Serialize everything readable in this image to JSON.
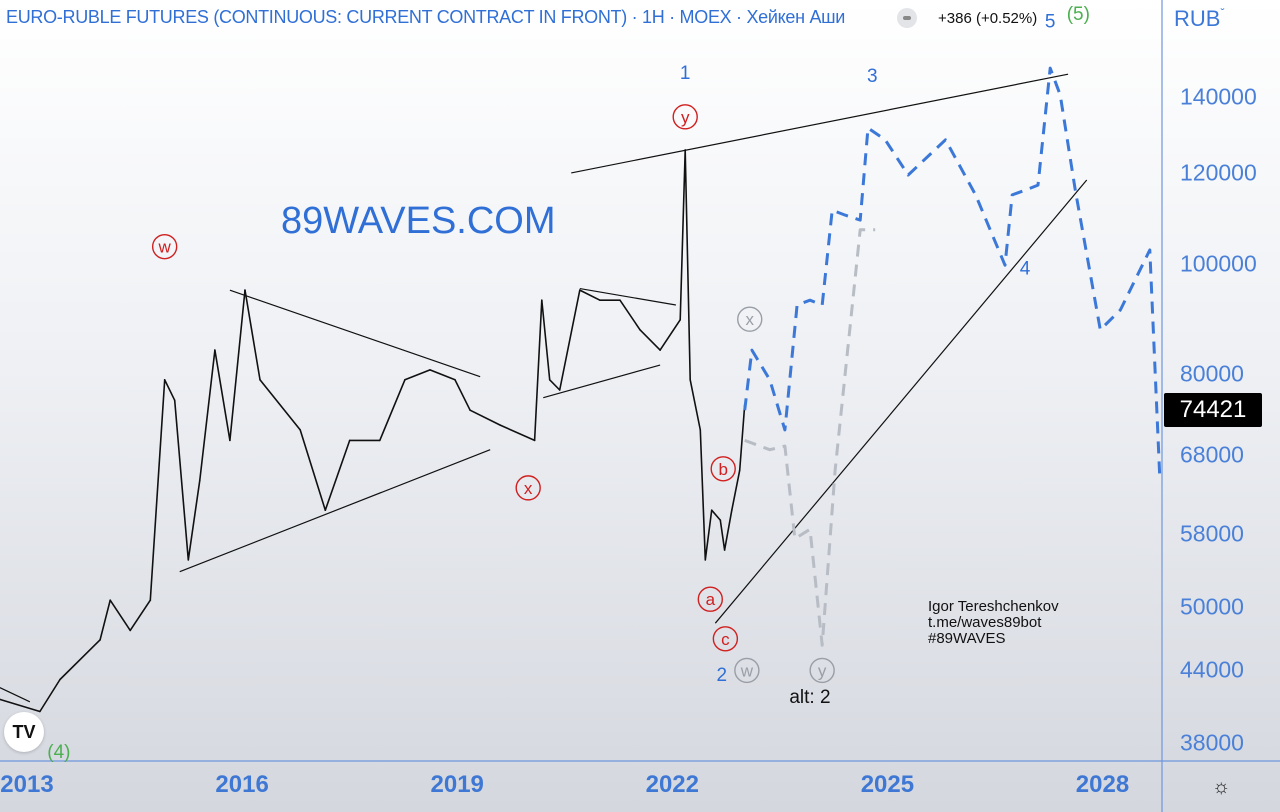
{
  "header": {
    "title": "EURO-RUBLE FUTURES (CONTINUOUS: CURRENT CONTRACT IN FRONT) · 1H · MOEX · Хейкен Аши",
    "change": "+386 (+0.52%)",
    "currency": "RUB"
  },
  "watermark": "89WAVES.COM",
  "author": {
    "name": "Igor Tereshchenkov",
    "link": "t.me/waves89bot",
    "tag": "#89WAVES"
  },
  "logo": "TV",
  "icons": {
    "settings": "sun-gear-icon"
  },
  "colors": {
    "price": "#111111",
    "projection": "#3b78d8",
    "alt_projection": "#b8bcc4",
    "red_label": "#d02020",
    "blue_label": "#2f6fd6",
    "green_label": "#4caf50",
    "axis": "#4a80d8"
  },
  "chart_data": {
    "type": "line",
    "title": "EURO-RUBLE FUTURES (CONTINUOUS: CURRENT CONTRACT IN FRONT)",
    "yscale": "log",
    "ylim": [
      36500,
      150000
    ],
    "xlim": [
      2012.62,
      2029.0
    ],
    "yticks": [
      "140000",
      "120000",
      "100000",
      "80000",
      "68000",
      "58000",
      "50000",
      "44000",
      "38000"
    ],
    "ytick_values": [
      140000,
      120000,
      100000,
      80000,
      68000,
      58000,
      50000,
      44000,
      38000
    ],
    "xticks": [
      "2013",
      "2016",
      "2019",
      "2022",
      "2025",
      "2028"
    ],
    "xtick_values": [
      2013,
      2016,
      2019,
      2022,
      2025,
      2028
    ],
    "last_price": "74421",
    "series": [
      {
        "name": "price",
        "style": "solid",
        "x": [
          2012.62,
          2013.18,
          2013.46,
          2014.02,
          2014.16,
          2014.44,
          2014.72,
          2014.92,
          2015.06,
          2015.25,
          2015.41,
          2015.62,
          2015.83,
          2016.04,
          2016.25,
          2016.81,
          2017.16,
          2017.5,
          2017.92,
          2018.27,
          2018.62,
          2018.97,
          2019.18,
          2019.6,
          2020.08,
          2020.18,
          2020.29,
          2020.43,
          2020.71,
          2020.99,
          2021.27,
          2021.55,
          2021.83,
          2022.11,
          2022.18,
          2022.25,
          2022.39,
          2022.46,
          2022.55,
          2022.67,
          2022.73,
          2022.83,
          2022.94,
          2023.01
        ],
        "y": [
          41500,
          40500,
          43200,
          46800,
          50700,
          47700,
          50700,
          79100,
          75900,
          55000,
          64600,
          84000,
          70000,
          94800,
          79100,
          71500,
          60800,
          70000,
          70000,
          79100,
          80700,
          79100,
          74400,
          72200,
          70000,
          92900,
          79100,
          77500,
          94800,
          92900,
          92900,
          87500,
          84000,
          89300,
          125800,
          79100,
          71500,
          55000,
          60800,
          59600,
          56100,
          60800,
          65900,
          75200
        ]
      },
      {
        "name": "projection",
        "style": "dashed",
        "x": [
          2023.01,
          2023.11,
          2023.36,
          2023.57,
          2023.74,
          2023.92,
          2024.09,
          2024.23,
          2024.41,
          2024.62,
          2024.73,
          2024.97,
          2025.29,
          2025.81,
          2026.23,
          2026.64,
          2026.74,
          2026.92,
          2027.1,
          2027.27,
          2027.41,
          2027.62,
          2027.97,
          2028.25,
          2028.66,
          2028.8
        ],
        "y": [
          74400,
          84000,
          79100,
          71500,
          92000,
          92900,
          92000,
          111400,
          110300,
          109200,
          131500,
          128400,
          119600,
          128400,
          114900,
          99700,
          114900,
          116000,
          117200,
          148400,
          140600,
          116000,
          87500,
          91100,
          102800,
          64600
        ]
      },
      {
        "name": "alt-projection",
        "style": "dashed",
        "x": [
          2023.01,
          2023.36,
          2023.57,
          2023.71,
          2023.92,
          2024.09,
          2024.27,
          2024.62,
          2024.83
        ],
        "y": [
          70000,
          68700,
          69200,
          57400,
          58500,
          46300,
          65900,
          107100,
          107100
        ]
      }
    ],
    "trendlines": [
      {
        "name": "wedge-upper",
        "x": [
          2020.59,
          2027.52
        ],
        "y": [
          120100,
          146600
        ]
      },
      {
        "name": "wedge-lower",
        "x": [
          2022.6,
          2027.78
        ],
        "y": [
          48400,
          118400
        ]
      },
      {
        "name": "triangle1-upper",
        "x": [
          2015.83,
          2019.32
        ],
        "y": [
          94800,
          79600
        ]
      },
      {
        "name": "triangle1-lower",
        "x": [
          2015.13,
          2019.46
        ],
        "y": [
          53700,
          68700
        ]
      },
      {
        "name": "triangle2-upper",
        "x": [
          2020.71,
          2022.05
        ],
        "y": [
          95100,
          92000
        ]
      },
      {
        "name": "triangle2-lower",
        "x": [
          2020.2,
          2021.83
        ],
        "y": [
          76300,
          81500
        ]
      },
      {
        "name": "left-small",
        "x": [
          2012.62,
          2013.04
        ],
        "y": [
          42500,
          41300
        ]
      }
    ],
    "annotations": [
      {
        "text": "1",
        "x": 2022.18,
        "y": 147000,
        "color": "blue",
        "circled": false
      },
      {
        "text": "3",
        "x": 2024.79,
        "y": 146000,
        "color": "blue",
        "circled": false
      },
      {
        "text": "5",
        "x": 2027.27,
        "y": 163000,
        "color": "blue",
        "circled": false
      },
      {
        "text": "4",
        "x": 2026.92,
        "y": 99000,
        "color": "blue",
        "circled": false
      },
      {
        "text": "2",
        "x": 2022.69,
        "y": 43600,
        "color": "blue",
        "circled": false
      },
      {
        "text": "alt: 2",
        "x": 2023.92,
        "y": 41700,
        "color": "black",
        "circled": false
      },
      {
        "text": "(5)",
        "x": 2027.3,
        "y": 166900,
        "color": "green",
        "circled": false
      },
      {
        "text": "(4)",
        "x": 2013.11,
        "y": 37300,
        "color": "green",
        "circled": false
      },
      {
        "text": "w",
        "x": 2014.92,
        "y": 103500,
        "color": "red",
        "circled": true
      },
      {
        "text": "x",
        "x": 2019.99,
        "y": 63600,
        "color": "red",
        "circled": true
      },
      {
        "text": "y",
        "x": 2022.18,
        "y": 134500,
        "color": "red",
        "circled": true
      },
      {
        "text": "a",
        "x": 2022.53,
        "y": 50800,
        "color": "red",
        "circled": true
      },
      {
        "text": "b",
        "x": 2022.71,
        "y": 66100,
        "color": "red",
        "circled": true
      },
      {
        "text": "c",
        "x": 2022.74,
        "y": 46900,
        "color": "red",
        "circled": true
      },
      {
        "text": "x",
        "x": 2023.08,
        "y": 89400,
        "color": "gray",
        "circled": true
      },
      {
        "text": "w",
        "x": 2023.04,
        "y": 44000,
        "color": "gray",
        "circled": true
      },
      {
        "text": "y",
        "x": 2024.09,
        "y": 44000,
        "color": "gray",
        "circled": true
      }
    ]
  }
}
